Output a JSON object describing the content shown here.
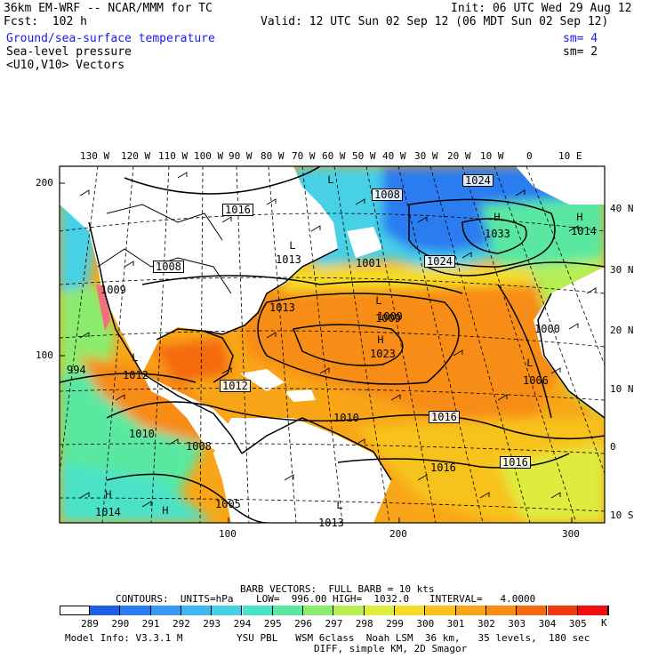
{
  "header": {
    "model": "36km EM-WRF -- NCAR/MMM for TC",
    "init": "Init: 06 UTC Wed 29 Aug 12",
    "fcst": "Fcst:  102 h",
    "valid": "Valid: 12 UTC Sun 02 Sep 12 (06 MDT Sun 02 Sep 12)",
    "field1": "Ground/sea-surface temperature",
    "field1_sm": "sm= 4",
    "field2": "Sea-level pressure",
    "field2_sm": "sm= 2",
    "field3": "<U10,V10> Vectors"
  },
  "map": {
    "top_lon_labels": [
      "130 W",
      "120 W",
      "110 W",
      "100 W",
      "90 W",
      "80 W",
      "70 W",
      "60 W",
      "50 W",
      "40 W",
      "30 W",
      "20 W",
      "10 W",
      "0",
      "10 E"
    ],
    "right_lat_labels": [
      "40 N",
      "30 N",
      "20 N",
      "10 N",
      "0",
      "10 S"
    ],
    "left_grid_labels": [
      "200",
      "100"
    ],
    "bottom_grid_labels": [
      "100",
      "200",
      "300"
    ],
    "pressure_labels": [
      {
        "text": "1016",
        "boxed": true
      },
      {
        "text": "1008",
        "boxed": true
      },
      {
        "text": "1008",
        "boxed": true
      },
      {
        "text": "1024",
        "boxed": true
      },
      {
        "text": "1024",
        "boxed": true
      },
      {
        "text": "1012",
        "boxed": true
      },
      {
        "text": "1016",
        "boxed": true
      },
      {
        "text": "1016",
        "boxed": true
      },
      {
        "text": "1013",
        "boxed": false
      },
      {
        "text": "1009",
        "boxed": false
      },
      {
        "text": "1023",
        "boxed": false
      },
      {
        "text": "1033",
        "boxed": false
      },
      {
        "text": "1014",
        "boxed": false
      },
      {
        "text": "1009",
        "boxed": false
      },
      {
        "text": "1006",
        "boxed": false
      },
      {
        "text": "1010",
        "boxed": false
      },
      {
        "text": "1016",
        "boxed": false
      },
      {
        "text": "1010",
        "boxed": false
      },
      {
        "text": "1008",
        "boxed": false
      },
      {
        "text": "1014",
        "boxed": false
      },
      {
        "text": "1005",
        "boxed": false
      },
      {
        "text": "1013",
        "boxed": false
      },
      {
        "text": "1012",
        "boxed": false
      },
      {
        "text": "994",
        "boxed": false
      },
      {
        "text": "1009",
        "boxed": false
      },
      {
        "text": "1001",
        "boxed": false
      },
      {
        "text": "1000",
        "boxed": false
      },
      {
        "text": "1013",
        "boxed": false
      }
    ],
    "center_marks": [
      "L",
      "H"
    ]
  },
  "legend": {
    "barb_line": "BARB VECTORS:  FULL BARB = 10 kts",
    "contours_label": "CONTOURS:  UNITS=hPa",
    "low": "LOW=  996.00",
    "high": "HIGH=  1032.0",
    "interval": "INTERVAL=   4.0000",
    "unit": "K",
    "scale": [
      {
        "label": "289",
        "color": "#1e5fe6"
      },
      {
        "label": "290",
        "color": "#2b7cf0"
      },
      {
        "label": "291",
        "color": "#3a98f5"
      },
      {
        "label": "292",
        "color": "#3fb7f0"
      },
      {
        "label": "293",
        "color": "#46d0e6"
      },
      {
        "label": "294",
        "color": "#4be3c8"
      },
      {
        "label": "295",
        "color": "#5ae8a0"
      },
      {
        "label": "296",
        "color": "#8cec6e"
      },
      {
        "label": "297",
        "color": "#b8ee52"
      },
      {
        "label": "298",
        "color": "#dfec3c"
      },
      {
        "label": "299",
        "color": "#f5dc28"
      },
      {
        "label": "300",
        "color": "#f8c21e"
      },
      {
        "label": "301",
        "color": "#f8a618"
      },
      {
        "label": "302",
        "color": "#f78c14"
      },
      {
        "label": "303",
        "color": "#f56a10"
      },
      {
        "label": "304",
        "color": "#f03a10"
      },
      {
        "label": "305",
        "color": "#f01010"
      }
    ],
    "last_color": "#f5a0a8"
  },
  "footer": {
    "model_info": "Model Info: V3.3.1 M",
    "physics": "YSU PBL   WSM 6class  Noah LSM  36 km,   35 levels,  180 sec",
    "diff": "DIFF, simple KM, 2D Smagor"
  }
}
